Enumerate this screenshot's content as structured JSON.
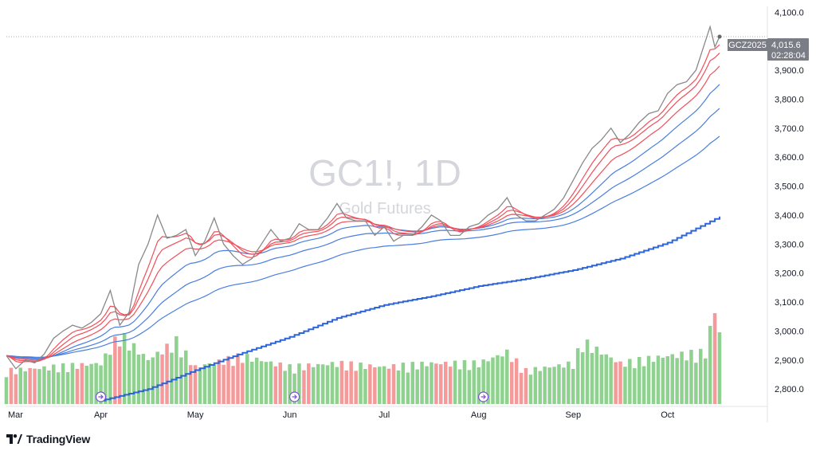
{
  "chart_data": {
    "type": "candlestick-line",
    "symbol_watermark": "GC1!, 1D",
    "name_watermark": "Gold Futures",
    "ylim": [
      2740,
      4120
    ],
    "yticks": [
      2800,
      2900,
      3000,
      3100,
      3200,
      3300,
      3400,
      3500,
      3600,
      3700,
      3800,
      3900,
      4000,
      4100
    ],
    "ytick_labels": [
      "2,800.0",
      "2,900.0",
      "3,000.0",
      "3,100.0",
      "3,200.0",
      "3,300.0",
      "3,400.0",
      "3,500.0",
      "3,600.0",
      "3,700.0",
      "3,800.0",
      "3,900.0",
      "4,000.0",
      "4,100.0"
    ],
    "months": [
      {
        "label": "Mar",
        "index": 0
      },
      {
        "label": "Apr",
        "index": 20
      },
      {
        "label": "May",
        "index": 40
      },
      {
        "label": "Jun",
        "index": 60
      },
      {
        "label": "Jul",
        "index": 80
      },
      {
        "label": "Aug",
        "index": 100
      },
      {
        "label": "Sep",
        "index": 120
      },
      {
        "label": "Oct",
        "index": 140
      }
    ],
    "price_keys": [
      [
        0,
        2915
      ],
      [
        2,
        2870
      ],
      [
        4,
        2900
      ],
      [
        6,
        2890
      ],
      [
        8,
        2920
      ],
      [
        10,
        2975
      ],
      [
        12,
        3000
      ],
      [
        14,
        3020
      ],
      [
        16,
        3010
      ],
      [
        18,
        3030
      ],
      [
        20,
        3060
      ],
      [
        22,
        3140
      ],
      [
        24,
        3020
      ],
      [
        26,
        3065
      ],
      [
        28,
        3230
      ],
      [
        30,
        3300
      ],
      [
        32,
        3400
      ],
      [
        34,
        3320
      ],
      [
        36,
        3330
      ],
      [
        38,
        3350
      ],
      [
        40,
        3260
      ],
      [
        42,
        3310
      ],
      [
        44,
        3390
      ],
      [
        46,
        3300
      ],
      [
        48,
        3260
      ],
      [
        50,
        3230
      ],
      [
        52,
        3250
      ],
      [
        54,
        3300
      ],
      [
        56,
        3350
      ],
      [
        58,
        3310
      ],
      [
        60,
        3320
      ],
      [
        62,
        3370
      ],
      [
        64,
        3350
      ],
      [
        66,
        3350
      ],
      [
        68,
        3390
      ],
      [
        70,
        3440
      ],
      [
        72,
        3390
      ],
      [
        74,
        3380
      ],
      [
        76,
        3380
      ],
      [
        78,
        3330
      ],
      [
        80,
        3360
      ],
      [
        82,
        3310
      ],
      [
        84,
        3330
      ],
      [
        86,
        3330
      ],
      [
        88,
        3360
      ],
      [
        90,
        3400
      ],
      [
        92,
        3380
      ],
      [
        94,
        3330
      ],
      [
        96,
        3330
      ],
      [
        98,
        3360
      ],
      [
        100,
        3370
      ],
      [
        102,
        3400
      ],
      [
        104,
        3420
      ],
      [
        106,
        3460
      ],
      [
        108,
        3400
      ],
      [
        110,
        3380
      ],
      [
        112,
        3380
      ],
      [
        114,
        3400
      ],
      [
        116,
        3420
      ],
      [
        118,
        3460
      ],
      [
        120,
        3520
      ],
      [
        122,
        3580
      ],
      [
        124,
        3630
      ],
      [
        126,
        3660
      ],
      [
        128,
        3700
      ],
      [
        130,
        3650
      ],
      [
        132,
        3680
      ],
      [
        134,
        3720
      ],
      [
        136,
        3750
      ],
      [
        138,
        3760
      ],
      [
        140,
        3820
      ],
      [
        142,
        3850
      ],
      [
        144,
        3860
      ],
      [
        146,
        3900
      ],
      [
        148,
        4000
      ],
      [
        149,
        4050
      ],
      [
        150,
        3980
      ],
      [
        151,
        4015.6
      ]
    ],
    "ema_periods_red": [
      5,
      8,
      13
    ],
    "ema_periods_blue": [
      21,
      34,
      55
    ],
    "long_ma_keys": [
      [
        20,
        2760
      ],
      [
        30,
        2800
      ],
      [
        40,
        2865
      ],
      [
        50,
        2925
      ],
      [
        60,
        2980
      ],
      [
        70,
        3045
      ],
      [
        80,
        3090
      ],
      [
        90,
        3120
      ],
      [
        100,
        3155
      ],
      [
        110,
        3180
      ],
      [
        120,
        3210
      ],
      [
        130,
        3250
      ],
      [
        140,
        3305
      ],
      [
        151,
        3395
      ]
    ],
    "volume_note": "relative volume bars, green = up day, red = down day",
    "volume_keys": [
      [
        0,
        0.45
      ],
      [
        10,
        0.5
      ],
      [
        20,
        0.55
      ],
      [
        24,
        0.95
      ],
      [
        30,
        0.6
      ],
      [
        36,
        0.85
      ],
      [
        40,
        0.5
      ],
      [
        50,
        0.65
      ],
      [
        60,
        0.5
      ],
      [
        70,
        0.55
      ],
      [
        80,
        0.5
      ],
      [
        90,
        0.55
      ],
      [
        100,
        0.55
      ],
      [
        106,
        0.7
      ],
      [
        110,
        0.45
      ],
      [
        120,
        0.55
      ],
      [
        122,
        0.85
      ],
      [
        130,
        0.55
      ],
      [
        140,
        0.65
      ],
      [
        148,
        0.7
      ],
      [
        150,
        1.3
      ],
      [
        151,
        0.95
      ]
    ],
    "price_tag": {
      "symbol": "GCZ2025",
      "value": "4,015.6",
      "countdown": "02:28:04"
    },
    "colors": {
      "price": "#888888",
      "red_ema": "#ef4f5a",
      "blue_ema": "#4a7ee0",
      "long_ma": "#2d64d8",
      "vol_up": "#8fd18f",
      "vol_down": "#f49a9a",
      "tag_bg": "#7a7d85"
    },
    "grid": false,
    "legend": "none"
  },
  "brand": {
    "name": "TradingView",
    "logo": "tradingview-logo"
  },
  "markers": {
    "icon": "dividend-arrow-icon",
    "indices": [
      20,
      61,
      101
    ]
  }
}
